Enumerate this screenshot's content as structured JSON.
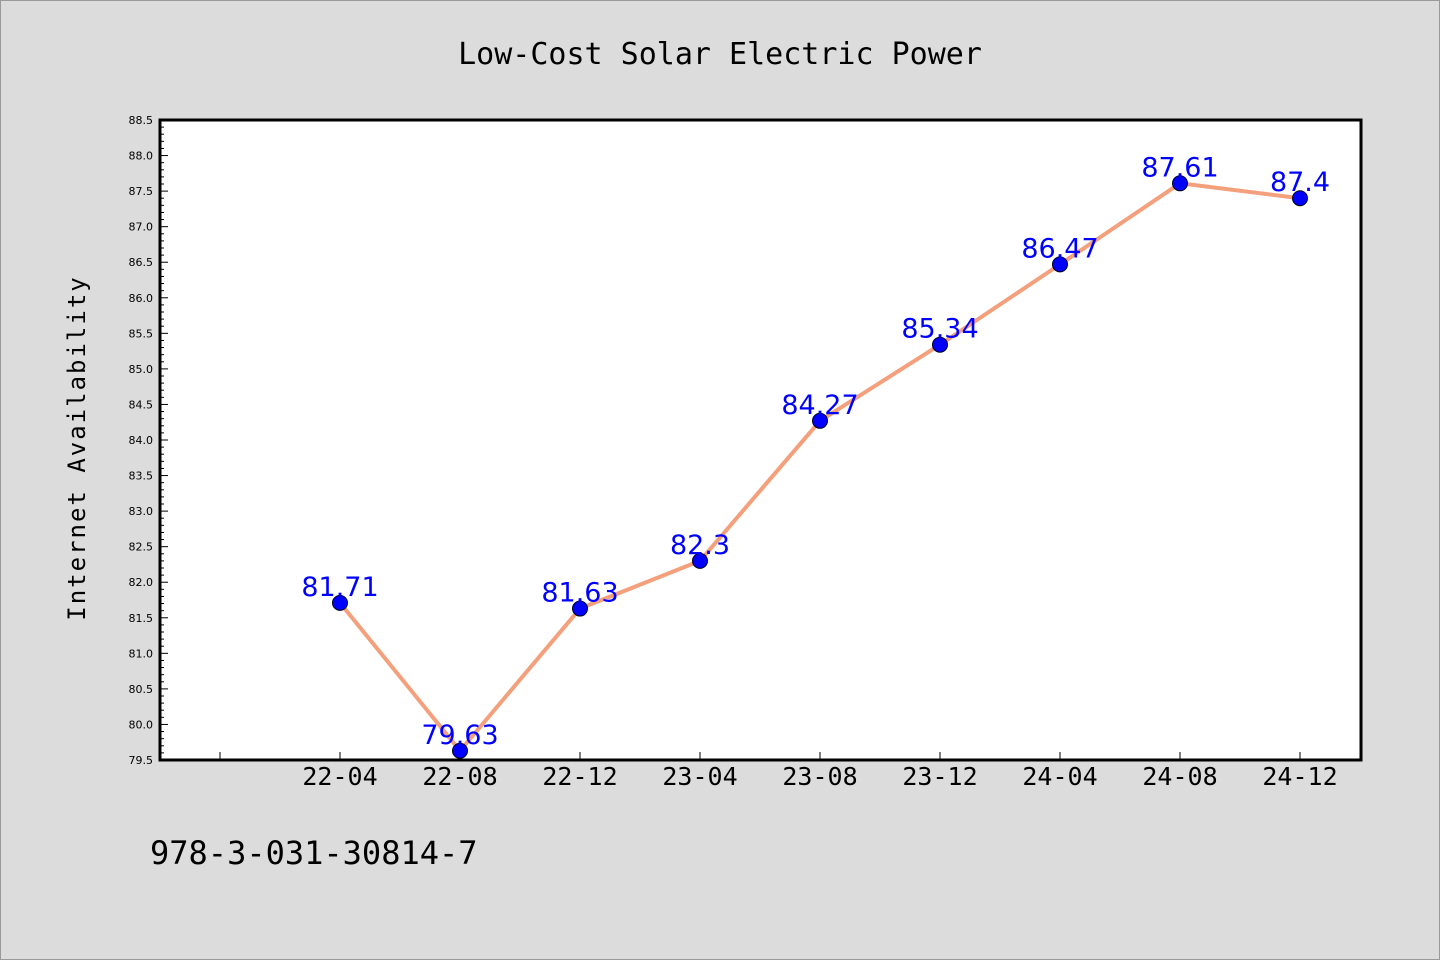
{
  "chart_data": {
    "type": "line",
    "title": "Low-Cost Solar Electric Power",
    "xlabel": "",
    "ylabel": "Internet Availability",
    "categories": [
      "22-04",
      "22-08",
      "22-12",
      "23-04",
      "23-08",
      "23-12",
      "24-04",
      "24-08",
      "24-12"
    ],
    "values": [
      81.71,
      79.63,
      81.63,
      82.3,
      84.27,
      85.34,
      86.47,
      87.61,
      87.4
    ],
    "data_labels": [
      "81.71",
      "79.63",
      "81.63",
      "82.3",
      "84.27",
      "85.34",
      "86.47",
      "87.61",
      "87.4"
    ],
    "ylim": [
      79.5,
      88.5
    ],
    "yticks": [
      "79.5",
      "80.0",
      "80.5",
      "81.0",
      "81.5",
      "82.0",
      "82.5",
      "83.0",
      "83.5",
      "84.0",
      "84.5",
      "85.0",
      "85.5",
      "86.0",
      "86.5",
      "87.0",
      "87.5",
      "88.0",
      "88.5"
    ],
    "grid": false,
    "colors": {
      "line": "#f4a07c",
      "marker": "#0000ff",
      "label": "#0000ff",
      "background": "#dcdcdc",
      "plot_background": "#ffffff"
    }
  },
  "footer": {
    "isbn": "978-3-031-30814-7"
  }
}
